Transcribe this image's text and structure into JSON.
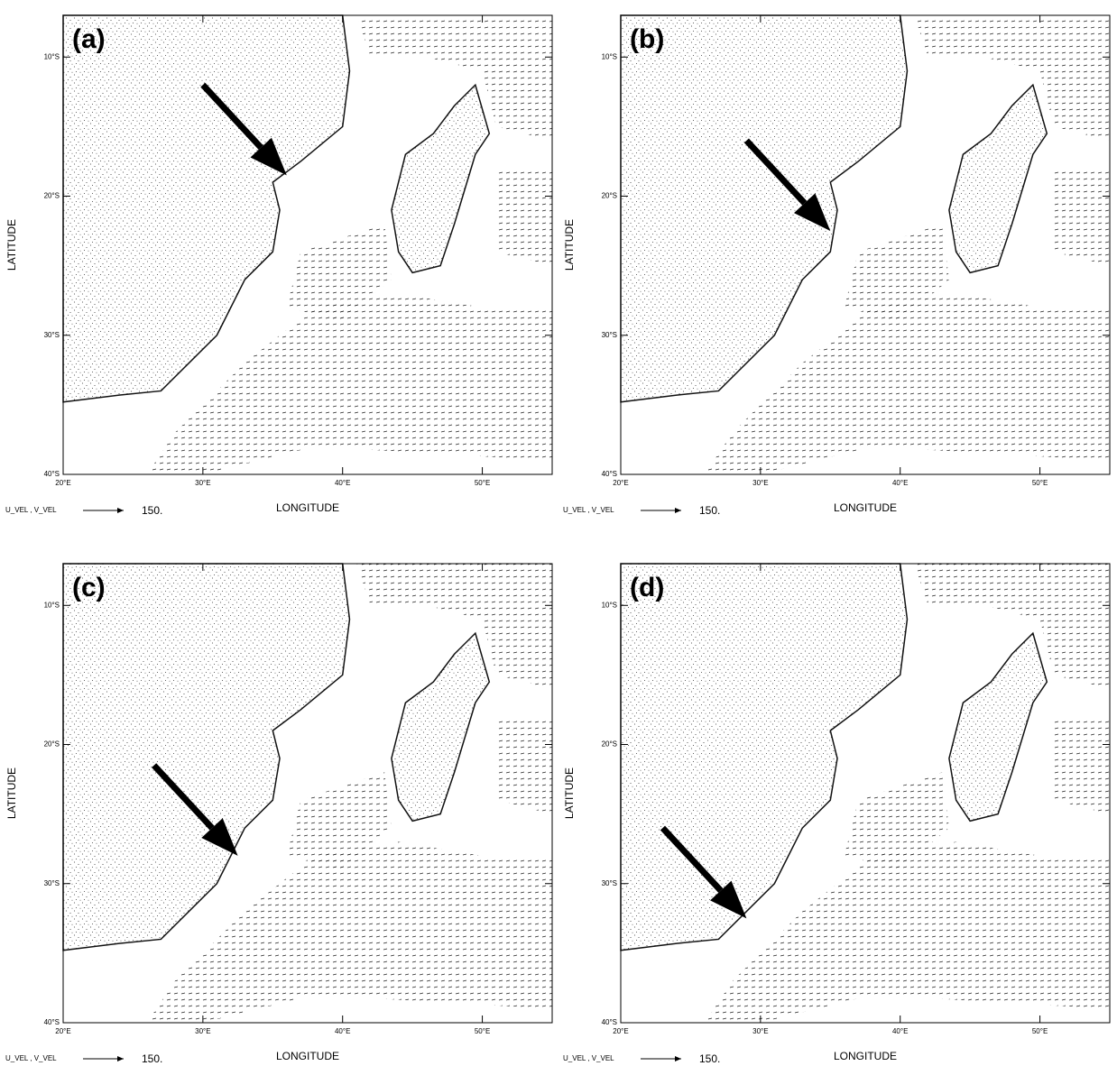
{
  "chart_data": [
    {
      "type": "vector-map",
      "panel_label": "(a)",
      "xlabel": "LONGITUDE",
      "ylabel": "LATITUDE",
      "xlim": [
        20,
        55
      ],
      "ylim": [
        -40,
        -7
      ],
      "xticks": [
        {
          "value": 20,
          "label": "20°E"
        },
        {
          "value": 30,
          "label": "30°E"
        },
        {
          "value": 40,
          "label": "40°E"
        },
        {
          "value": 50,
          "label": "50°E"
        }
      ],
      "yticks": [
        {
          "value": -10,
          "label": "10°S"
        },
        {
          "value": -20,
          "label": "20°S"
        },
        {
          "value": -30,
          "label": "30°S"
        },
        {
          "value": -40,
          "label": "40°S"
        }
      ],
      "vector_label": "U_VEL , V_VEL",
      "reference_vector": {
        "value": 150,
        "label": "150."
      }
    },
    {
      "type": "vector-map",
      "panel_label": "(b)",
      "xlabel": "LONGITUDE",
      "ylabel": "LATITUDE",
      "xlim": [
        20,
        55
      ],
      "ylim": [
        -40,
        -7
      ],
      "xticks": [
        {
          "value": 20,
          "label": "20°E"
        },
        {
          "value": 30,
          "label": "30°E"
        },
        {
          "value": 40,
          "label": "40°E"
        },
        {
          "value": 50,
          "label": "50°E"
        }
      ],
      "yticks": [
        {
          "value": -10,
          "label": "10°S"
        },
        {
          "value": -20,
          "label": "20°S"
        },
        {
          "value": -30,
          "label": "30°S"
        },
        {
          "value": -40,
          "label": "40°S"
        }
      ],
      "vector_label": "U_VEL , V_VEL",
      "reference_vector": {
        "value": 150,
        "label": "150."
      }
    },
    {
      "type": "vector-map",
      "panel_label": "(c)",
      "xlabel": "LONGITUDE",
      "ylabel": "LATITUDE",
      "xlim": [
        20,
        55
      ],
      "ylim": [
        -40,
        -7
      ],
      "xticks": [
        {
          "value": 20,
          "label": "20°E"
        },
        {
          "value": 30,
          "label": "30°E"
        },
        {
          "value": 40,
          "label": "40°E"
        },
        {
          "value": 50,
          "label": "50°E"
        }
      ],
      "yticks": [
        {
          "value": -10,
          "label": "10°S"
        },
        {
          "value": -20,
          "label": "20°S"
        },
        {
          "value": -30,
          "label": "30°S"
        },
        {
          "value": -40,
          "label": "40°S"
        }
      ],
      "vector_label": "U_VEL , V_VEL",
      "reference_vector": {
        "value": 150,
        "label": "150."
      }
    },
    {
      "type": "vector-map",
      "panel_label": "(d)",
      "xlabel": "LONGITUDE",
      "ylabel": "LATITUDE",
      "xlim": [
        20,
        55
      ],
      "ylim": [
        -40,
        -7
      ],
      "xticks": [
        {
          "value": 20,
          "label": "20°E"
        },
        {
          "value": 30,
          "label": "30°E"
        },
        {
          "value": 40,
          "label": "40°E"
        },
        {
          "value": 50,
          "label": "50°E"
        }
      ],
      "yticks": [
        {
          "value": -10,
          "label": "10°S"
        },
        {
          "value": -20,
          "label": "20°S"
        },
        {
          "value": -30,
          "label": "30°S"
        },
        {
          "value": -40,
          "label": "40°S"
        }
      ],
      "vector_label": "U_VEL , V_VEL",
      "reference_vector": {
        "value": 150,
        "label": "150."
      }
    }
  ]
}
